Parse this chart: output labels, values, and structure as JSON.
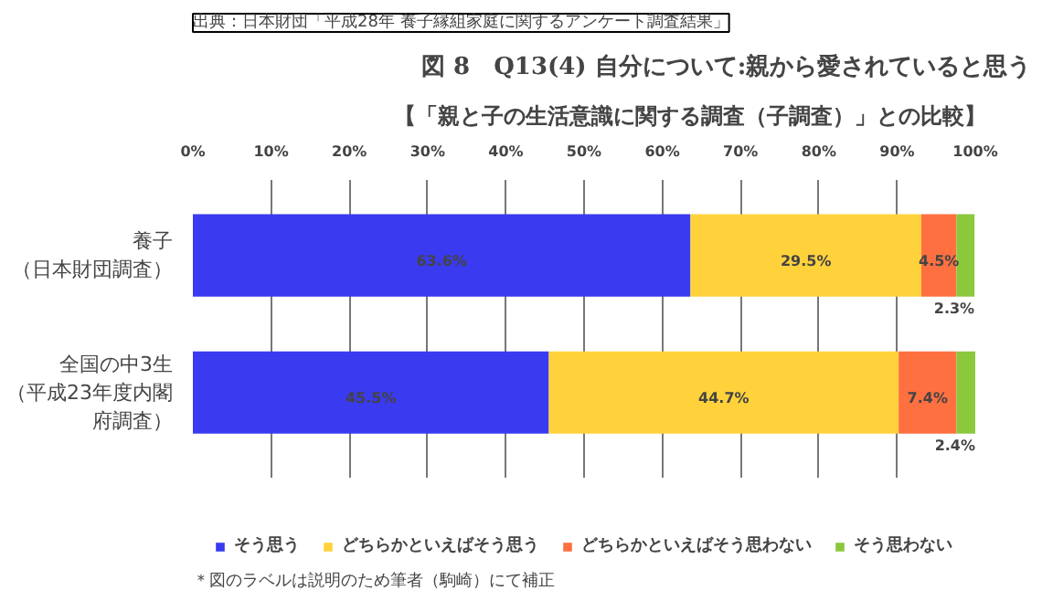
{
  "chart_data": {
    "type": "bar",
    "orientation": "horizontal",
    "stacked": true,
    "title": "図 8　Q13(4)  自分について:親から愛されていると思う",
    "subtitle": "【「親と子の生活意識に関する調査（子調査）」との比較】",
    "categories": [
      "養子（日本財団調査）",
      "全国の中3生（平成23年度内閣府調査）"
    ],
    "series": [
      {
        "name": "そう思う",
        "color": "#3a3af0",
        "values": [
          63.6,
          45.5
        ],
        "value_labels": [
          "63.6%",
          "45.5%"
        ]
      },
      {
        "name": "どちらかといえばそう思う",
        "color": "#ffd23c",
        "values": [
          29.5,
          44.7
        ],
        "value_labels": [
          "29.5%",
          "44.7%"
        ]
      },
      {
        "name": "どちらかといえばそう思わない",
        "color": "#ff7040",
        "values": [
          4.5,
          7.4
        ],
        "value_labels": [
          "4.5%",
          "7.4%"
        ]
      },
      {
        "name": "そう思わない",
        "color": "#8cc83c",
        "values": [
          2.3,
          2.4
        ],
        "value_labels": [
          "2.3%",
          "2.4%"
        ]
      }
    ],
    "xlim": [
      0,
      100
    ],
    "xticks": [
      {
        "value": 0,
        "label": "0%"
      },
      {
        "value": 10,
        "label": "10%"
      },
      {
        "value": 20,
        "label": "20%"
      },
      {
        "value": 30,
        "label": "30%"
      },
      {
        "value": 40,
        "label": "40%"
      },
      {
        "value": 50,
        "label": "50%"
      },
      {
        "value": 60,
        "label": "60%"
      },
      {
        "value": 70,
        "label": "70%"
      },
      {
        "value": 80,
        "label": "80%"
      },
      {
        "value": 90,
        "label": "90%"
      },
      {
        "value": 100,
        "label": "100%"
      }
    ],
    "grid": "x",
    "legend": "bottom",
    "annotations": [
      "出典：日本財団「平成28年 養子縁組家庭に関するアンケート調査結果」",
      "＊図のラベルは説明のため筆者（駒崎）にて補正"
    ]
  }
}
